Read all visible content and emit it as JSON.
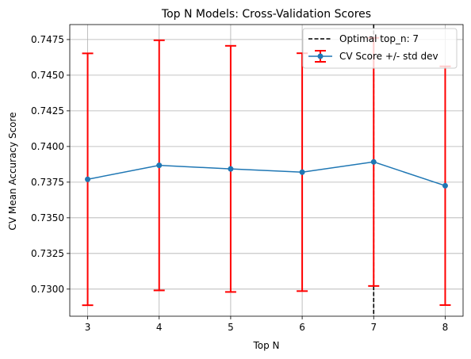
{
  "chart_data": {
    "type": "line",
    "title": "Top N Models: Cross-Validation Scores",
    "xlabel": "Top N",
    "ylabel": "CV Mean Accuracy Score",
    "x": [
      3,
      4,
      5,
      6,
      7,
      8
    ],
    "xlim": [
      2.75,
      8.25
    ],
    "ylim": [
      0.7281,
      0.74855
    ],
    "yticks": [
      "0.7300",
      "0.7325",
      "0.7350",
      "0.7375",
      "0.7400",
      "0.7425",
      "0.7450",
      "0.7475"
    ],
    "xticks": [
      "3",
      "4",
      "5",
      "6",
      "7",
      "8"
    ],
    "grid": true,
    "legend_position": "top-right",
    "series": [
      {
        "name": "CV Score +/- std dev",
        "values": [
          0.7377,
          0.73868,
          0.73843,
          0.7382,
          0.73892,
          0.73725
        ],
        "std": [
          0.00883,
          0.00877,
          0.00863,
          0.00834,
          0.0087,
          0.00837
        ],
        "color": "#1f77b4",
        "error_color": "#ff0000"
      }
    ],
    "reference_line": {
      "name": "Optimal top_n: 7",
      "x": 7,
      "color": "#000000",
      "style": "dashed"
    }
  }
}
